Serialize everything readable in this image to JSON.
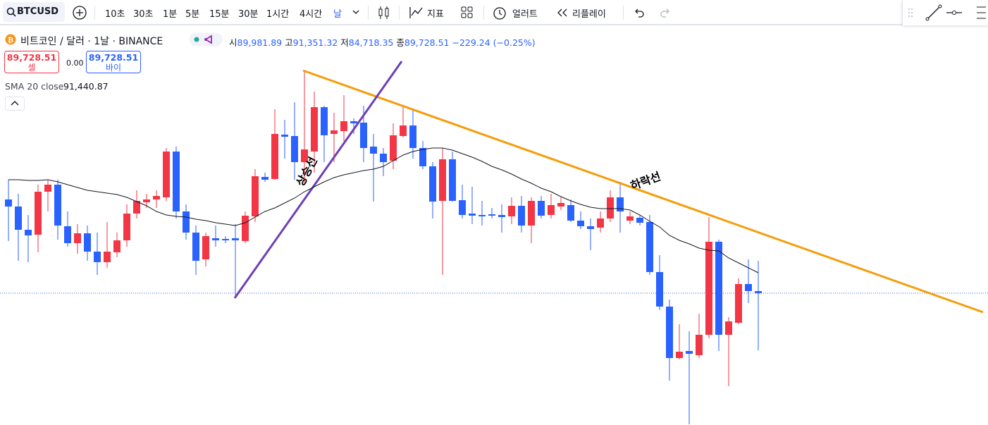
{
  "toolbar": {
    "symbol": "BTCUSD",
    "intervals": [
      "10초",
      "30초",
      "1분",
      "5분",
      "15분",
      "30분",
      "1시간",
      "4시간",
      "날"
    ],
    "indicators": "지표",
    "alert": "얼러트",
    "replay": "리플레이"
  },
  "legend": {
    "title": "비트코인 / 달러 · 1날 · BINANCE",
    "open_label": "시",
    "open": "89,981.89",
    "high_label": "고",
    "high": "91,351.32",
    "low_label": "저",
    "low": "84,718.35",
    "close_label": "종",
    "close": "89,728.51",
    "change": "−229.24 (−0.25%)",
    "sell_price": "89,728.51",
    "sell": "셀",
    "spread": "0.00",
    "buy_price": "89,728.51",
    "buy": "바이",
    "indicator": "SMA 20 close",
    "indicator_value": "91,440.87"
  },
  "chart_data": {
    "type": "candlestick",
    "up_color": "#f23645",
    "down_color": "#2962ff",
    "ylim": [
      80650,
      108800
    ],
    "candles": [
      [
        96650,
        98050,
        93700,
        96150
      ],
      [
        96150,
        97050,
        92300,
        94500
      ],
      [
        94500,
        95550,
        92200,
        94100
      ],
      [
        94150,
        97700,
        92900,
        97200
      ],
      [
        97200,
        98050,
        95800,
        97700
      ],
      [
        97700,
        98050,
        93800,
        94800
      ],
      [
        94750,
        95800,
        93300,
        93550
      ],
      [
        93550,
        94900,
        92800,
        94250
      ],
      [
        94250,
        94800,
        92300,
        92950
      ],
      [
        92950,
        94300,
        91300,
        92200
      ],
      [
        92200,
        95050,
        91800,
        92950
      ],
      [
        92900,
        94300,
        92550,
        93750
      ],
      [
        93750,
        96300,
        93300,
        95650
      ],
      [
        95650,
        97300,
        95300,
        96550
      ],
      [
        96450,
        97050,
        96050,
        96650
      ],
      [
        96650,
        97300,
        96050,
        96900
      ],
      [
        96800,
        100300,
        96550,
        100050
      ],
      [
        100050,
        100400,
        95300,
        95800
      ],
      [
        95800,
        96300,
        93800,
        94300
      ],
      [
        94300,
        94800,
        91300,
        92300
      ],
      [
        92400,
        94300,
        91900,
        94050
      ],
      [
        93900,
        94800,
        93300,
        93750
      ],
      [
        93850,
        94050,
        93550,
        93750
      ],
      [
        93900,
        94900,
        89700,
        93750
      ],
      [
        93700,
        95800,
        93550,
        95500
      ],
      [
        95450,
        98800,
        95050,
        98300
      ],
      [
        98250,
        98550,
        97900,
        98050
      ],
      [
        98100,
        103050,
        98050,
        101300
      ],
      [
        101250,
        102300,
        99550,
        101100
      ],
      [
        101150,
        103550,
        98050,
        99300
      ],
      [
        99300,
        105800,
        97800,
        100200
      ],
      [
        100050,
        104300,
        98550,
        103200
      ],
      [
        103200,
        103300,
        99300,
        101200
      ],
      [
        101300,
        102800,
        99300,
        101550
      ],
      [
        101500,
        104050,
        100800,
        102200
      ],
      [
        102200,
        102400,
        101300,
        102050
      ],
      [
        102100,
        103300,
        99300,
        100300
      ],
      [
        100400,
        101300,
        96500,
        99900
      ],
      [
        99900,
        100300,
        98300,
        99300
      ],
      [
        99400,
        102050,
        98800,
        101200
      ],
      [
        101150,
        103300,
        101050,
        101900
      ],
      [
        101900,
        103050,
        99550,
        100300
      ],
      [
        100300,
        100800,
        98800,
        99000
      ],
      [
        99000,
        99300,
        95300,
        96500
      ],
      [
        96550,
        100300,
        91300,
        99500
      ],
      [
        99500,
        100050,
        96500,
        96550
      ],
      [
        96600,
        97700,
        95300,
        95550
      ],
      [
        95650,
        97550,
        94900,
        95500
      ],
      [
        95550,
        96550,
        94800,
        95450
      ],
      [
        95600,
        96050,
        95300,
        95500
      ],
      [
        95550,
        96300,
        94300,
        95400
      ],
      [
        95450,
        96800,
        94900,
        96200
      ],
      [
        96200,
        96900,
        94300,
        94800
      ],
      [
        94800,
        96800,
        93550,
        96550
      ],
      [
        96550,
        96900,
        95300,
        95500
      ],
      [
        95550,
        97050,
        95300,
        96250
      ],
      [
        96150,
        96800,
        95900,
        96400
      ],
      [
        96250,
        96650,
        95050,
        95150
      ],
      [
        95150,
        95800,
        94550,
        94750
      ],
      [
        94750,
        95300,
        93050,
        94550
      ],
      [
        94650,
        95800,
        94300,
        95300
      ],
      [
        95300,
        97300,
        95050,
        96800
      ],
      [
        96800,
        97900,
        94300,
        95800
      ],
      [
        95150,
        95800,
        94900,
        95450
      ],
      [
        95350,
        95550,
        94800,
        95000
      ],
      [
        95050,
        95550,
        91300,
        91500
      ],
      [
        91500,
        92700,
        88800,
        89050
      ],
      [
        89050,
        89550,
        83800,
        85400
      ],
      [
        85400,
        87800,
        85300,
        85850
      ],
      [
        85900,
        87300,
        80700,
        85700
      ],
      [
        85600,
        88550,
        85400,
        87050
      ],
      [
        87050,
        95400,
        86800,
        93650
      ],
      [
        93650,
        93800,
        85900,
        87050
      ],
      [
        87050,
        88300,
        83400,
        88000
      ],
      [
        87900,
        91050,
        87800,
        90650
      ],
      [
        90650,
        92400,
        89300,
        90150
      ],
      [
        90150,
        92300,
        85950,
        90000
      ]
    ],
    "sma": {
      "color": "#131722",
      "values": [
        98050,
        98050,
        98000,
        98000,
        98050,
        97900,
        97700,
        97500,
        97300,
        97200,
        97100,
        97000,
        96800,
        96500,
        96200,
        95800,
        95550,
        95450,
        95400,
        95250,
        95150,
        95000,
        94900,
        94800,
        95000,
        95400,
        95800,
        96050,
        96400,
        96750,
        97200,
        97550,
        97900,
        98200,
        98400,
        98550,
        98700,
        98800,
        99000,
        99400,
        99800,
        100050,
        100200,
        100300,
        100300,
        100150,
        99900,
        99650,
        99350,
        99000,
        98750,
        98450,
        98100,
        97800,
        97450,
        97200,
        96850,
        96550,
        96300,
        96100,
        96000,
        96000,
        96000,
        95900,
        95550,
        95100,
        94700,
        94100,
        93750,
        93500,
        93200,
        93050,
        93000,
        92500,
        92150,
        91800,
        91450
      ]
    },
    "annotations": {
      "downtrend": "하락선",
      "uptrend": "상승선"
    }
  }
}
